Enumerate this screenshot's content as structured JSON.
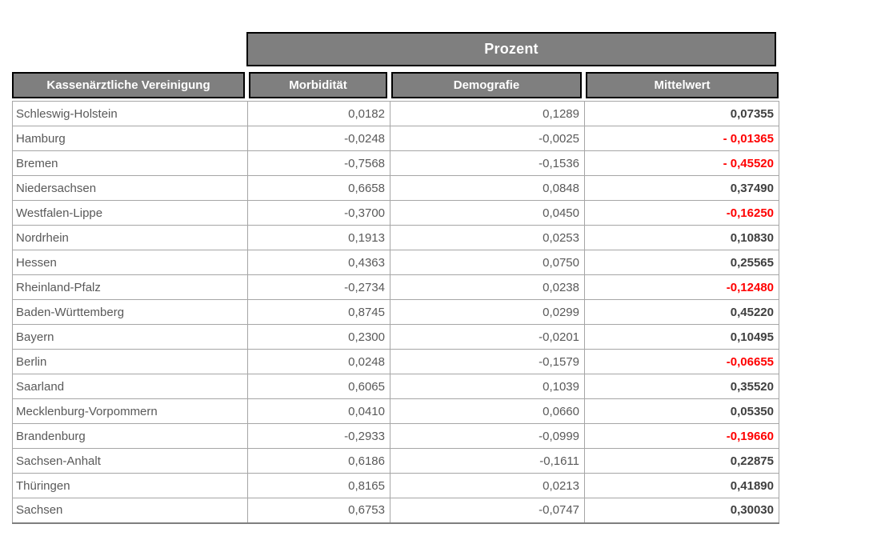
{
  "colors": {
    "header_fill": "#7f7f7f",
    "header_text": "#ffffff",
    "header_border": "#000000",
    "grid_border": "#a6a6a6",
    "body_text": "#595959",
    "mittelwert_text": "#3f3f3f",
    "negative_text": "#ff0000",
    "background": "#ffffff"
  },
  "chart_data": {
    "type": "table",
    "group_header": "Prozent",
    "columns": [
      "Kassenärztliche Vereinigung",
      "Morbidität",
      "Demografie",
      "Mittelwert"
    ],
    "rows": [
      {
        "name": "Schleswig-Holstein",
        "morbiditaet": "0,0182",
        "demografie": "0,1289",
        "mittelwert": "0,07355",
        "negative": false
      },
      {
        "name": "Hamburg",
        "morbiditaet": "-0,0248",
        "demografie": "-0,0025",
        "mittelwert": "- 0,01365",
        "negative": true
      },
      {
        "name": "Bremen",
        "morbiditaet": "-0,7568",
        "demografie": "-0,1536",
        "mittelwert": "- 0,45520",
        "negative": true
      },
      {
        "name": "Niedersachsen",
        "morbiditaet": "0,6658",
        "demografie": "0,0848",
        "mittelwert": "0,37490",
        "negative": false
      },
      {
        "name": "Westfalen-Lippe",
        "morbiditaet": "-0,3700",
        "demografie": "0,0450",
        "mittelwert": "-0,16250",
        "negative": true
      },
      {
        "name": "Nordrhein",
        "morbiditaet": "0,1913",
        "demografie": "0,0253",
        "mittelwert": "0,10830",
        "negative": false
      },
      {
        "name": "Hessen",
        "morbiditaet": "0,4363",
        "demografie": "0,0750",
        "mittelwert": "0,25565",
        "negative": false
      },
      {
        "name": "Rheinland-Pfalz",
        "morbiditaet": "-0,2734",
        "demografie": "0,0238",
        "mittelwert": "-0,12480",
        "negative": true
      },
      {
        "name": "Baden-Württemberg",
        "morbiditaet": "0,8745",
        "demografie": "0,0299",
        "mittelwert": "0,45220",
        "negative": false
      },
      {
        "name": "Bayern",
        "morbiditaet": "0,2300",
        "demografie": "-0,0201",
        "mittelwert": "0,10495",
        "negative": false
      },
      {
        "name": "Berlin",
        "morbiditaet": "0,0248",
        "demografie": "-0,1579",
        "mittelwert": "-0,06655",
        "negative": true
      },
      {
        "name": "Saarland",
        "morbiditaet": "0,6065",
        "demografie": "0,1039",
        "mittelwert": "0,35520",
        "negative": false
      },
      {
        "name": "Mecklenburg-Vorpommern",
        "morbiditaet": "0,0410",
        "demografie": "0,0660",
        "mittelwert": "0,05350",
        "negative": false
      },
      {
        "name": "Brandenburg",
        "morbiditaet": "-0,2933",
        "demografie": "-0,0999",
        "mittelwert": "-0,19660",
        "negative": true
      },
      {
        "name": "Sachsen-Anhalt",
        "morbiditaet": "0,6186",
        "demografie": "-0,1611",
        "mittelwert": "0,22875",
        "negative": false
      },
      {
        "name": "Thüringen",
        "morbiditaet": "0,8165",
        "demografie": "0,0213",
        "mittelwert": "0,41890",
        "negative": false
      },
      {
        "name": "Sachsen",
        "morbiditaet": "0,6753",
        "demografie": "-0,0747",
        "mittelwert": "0,30030",
        "negative": false
      }
    ]
  }
}
